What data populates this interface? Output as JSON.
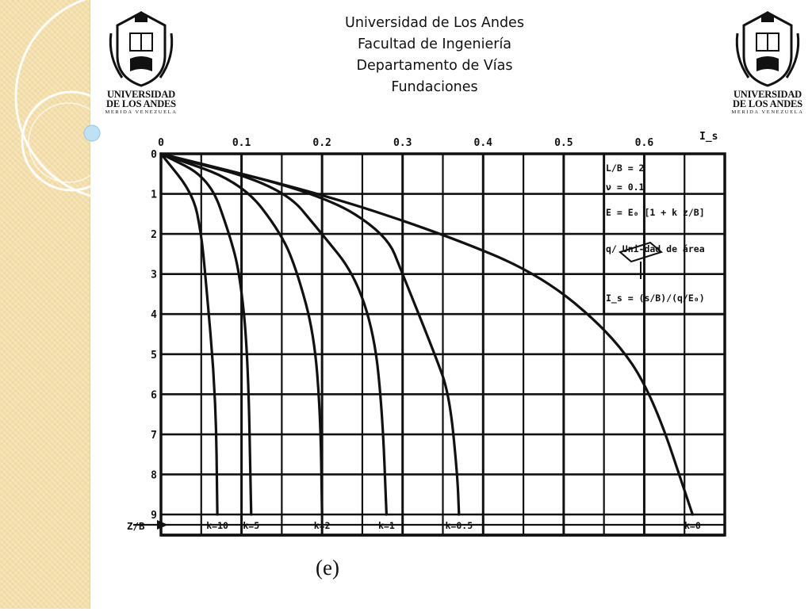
{
  "header": {
    "line1": "Universidad de Los Andes",
    "line2": "Facultad de Ingeniería",
    "line3": "Departamento de Vías",
    "line4": "Fundaciones"
  },
  "logo": {
    "line1": "UNIVERSIDAD",
    "line2": "DE LOS ANDES",
    "line3": "MERIDA VENEZUELA"
  },
  "caption": "(e)",
  "colors": {
    "side_strip": "#f3deaa",
    "ink": "#111111",
    "deco_circle": "#ffffff",
    "deco_dot": "#bfe0f5"
  },
  "chart_data": {
    "type": "line",
    "xlabel": "I_s",
    "ylabel": "Z/B",
    "x_ticks": [
      "0",
      "0.1",
      "0.2",
      "0.3",
      "0.4",
      "0.5",
      "0.6"
    ],
    "y_ticks": [
      "0",
      "1",
      "2",
      "3",
      "4",
      "5",
      "6",
      "7",
      "8",
      "9"
    ],
    "xlim": [
      0,
      0.7
    ],
    "ylim": [
      0,
      9
    ],
    "grid": true,
    "annotation_lines": [
      "L/B = 2",
      "ν = 0.1",
      "E = E₀ [1 + k z/B]",
      "q/ Uni-dad de área",
      "I_s = (s/B)/(q/E₀)"
    ],
    "series": [
      {
        "name": "k=10",
        "x": [
          0,
          0.04,
          0.05,
          0.055,
          0.068,
          0.07
        ],
        "y": [
          0,
          1,
          2,
          3,
          6,
          9
        ]
      },
      {
        "name": "k=5",
        "x": [
          0,
          0.06,
          0.085,
          0.098,
          0.108,
          0.112
        ],
        "y": [
          0,
          0.6,
          2,
          3,
          5,
          9
        ]
      },
      {
        "name": "k=2",
        "x": [
          0,
          0.1,
          0.15,
          0.17,
          0.19,
          0.198,
          0.2
        ],
        "y": [
          0,
          0.7,
          2,
          3,
          4.5,
          6.5,
          9
        ]
      },
      {
        "name": "k=1",
        "x": [
          0,
          0.15,
          0.2,
          0.24,
          0.265,
          0.275,
          0.28
        ],
        "y": [
          0,
          0.8,
          2,
          3,
          4.5,
          6.5,
          9
        ]
      },
      {
        "name": "k=0.5",
        "x": [
          0,
          0.2,
          0.28,
          0.3,
          0.34,
          0.358,
          0.368,
          0.37
        ],
        "y": [
          0,
          1,
          2,
          3,
          5,
          6,
          8,
          9
        ]
      },
      {
        "name": "k=0",
        "x": [
          0,
          0.2,
          0.35,
          0.47,
          0.56,
          0.61,
          0.66
        ],
        "y": [
          0,
          1,
          2,
          3,
          4.5,
          6,
          9
        ]
      }
    ]
  }
}
